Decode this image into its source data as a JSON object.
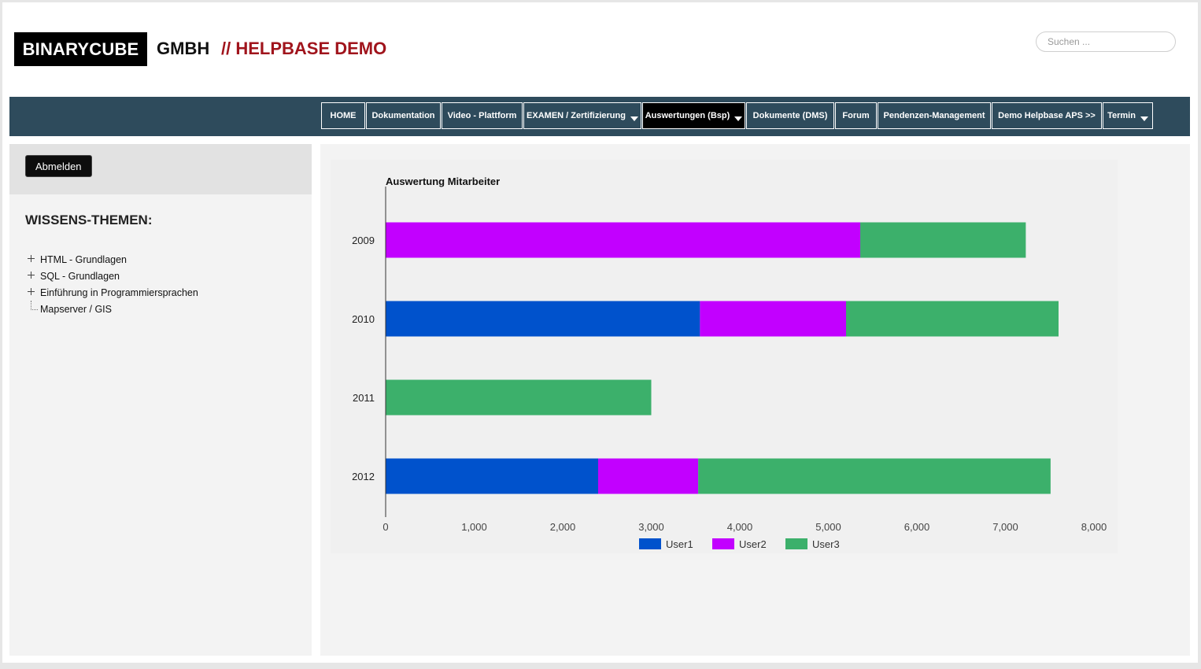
{
  "header": {
    "brand_box": "BINARYCUBE",
    "brand_gmbh": "GMBH",
    "brand_demo": "// HELPBASE DEMO",
    "search_placeholder": "Suchen ..."
  },
  "nav": {
    "items": [
      {
        "label": "HOME",
        "dropdown": false,
        "active": false
      },
      {
        "label": "Dokumentation",
        "dropdown": false,
        "active": false
      },
      {
        "label": "Video - Plattform",
        "dropdown": false,
        "active": false
      },
      {
        "label": "EXAMEN / Zertifizierung",
        "dropdown": true,
        "active": false
      },
      {
        "label": "Auswertungen (Bsp)",
        "dropdown": true,
        "active": true
      },
      {
        "label": "Dokumente (DMS)",
        "dropdown": false,
        "active": false
      },
      {
        "label": "Forum",
        "dropdown": false,
        "active": false
      },
      {
        "label": "Pendenzen-Management",
        "dropdown": false,
        "active": false
      },
      {
        "label": "Demo Helpbase APS >>",
        "dropdown": false,
        "active": false
      },
      {
        "label": "Termin",
        "dropdown": true,
        "active": false
      }
    ]
  },
  "sidebar": {
    "logout_label": "Abmelden",
    "topics_title": "WISSENS-THEMEN:",
    "tree": [
      {
        "label": "HTML - Grundlagen",
        "expandable": true
      },
      {
        "label": "SQL - Grundlagen",
        "expandable": true
      },
      {
        "label": "Einführung in Programmiersprachen",
        "expandable": true
      },
      {
        "label": "Mapserver / GIS",
        "expandable": false
      }
    ]
  },
  "colors": {
    "navbar": "#2e4b5c",
    "brand_red": "#a0141c",
    "user1": "#0052cc",
    "user2": "#c200ff",
    "user3": "#3cb06b"
  },
  "chart_data": {
    "type": "bar",
    "orientation": "horizontal",
    "stacked": true,
    "title": "Auswertung Mitarbeiter",
    "categories": [
      "2009",
      "2010",
      "2011",
      "2012"
    ],
    "series": [
      {
        "name": "User1",
        "values": [
          0,
          3550,
          0,
          2400
        ]
      },
      {
        "name": "User2",
        "values": [
          5360,
          1650,
          0,
          1130
        ]
      },
      {
        "name": "User3",
        "values": [
          1870,
          2400,
          3000,
          3980
        ]
      }
    ],
    "xlim": [
      0,
      8000
    ],
    "xticks": [
      "0",
      "1,000",
      "2,000",
      "3,000",
      "4,000",
      "5,000",
      "6,000",
      "7,000",
      "8,000"
    ],
    "legend": "bottom"
  }
}
